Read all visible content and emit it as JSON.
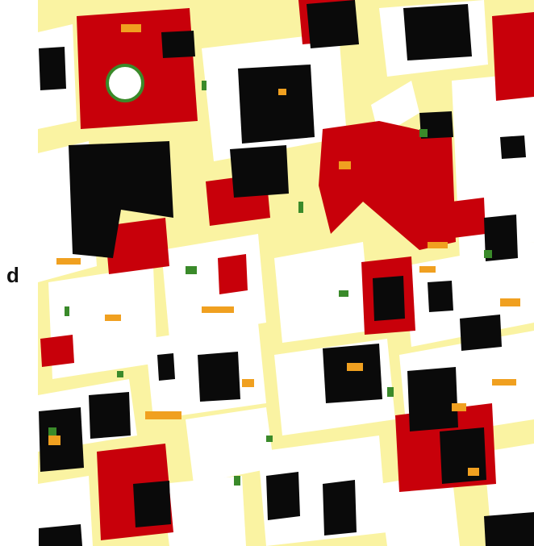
{
  "panel_label": "d"
}
